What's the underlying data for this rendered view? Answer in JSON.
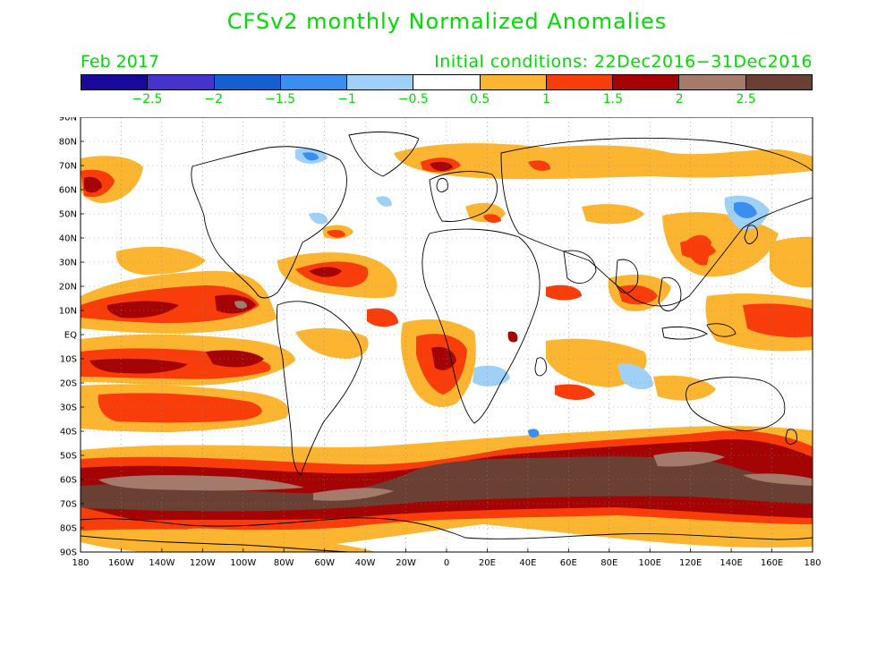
{
  "title": "CFSv2 monthly Normalized Anomalies",
  "month_label": "Feb 2017",
  "init_label": "Initial conditions: 22Dec2016−31Dec2016",
  "colorbar": {
    "colors": [
      "#1a0a9c",
      "#4433cc",
      "#1560d0",
      "#3a8ef0",
      "#9fd0f8",
      "#ffffff",
      "#fbb530",
      "#f83c0a",
      "#a40404",
      "#a47a6a",
      "#6a4034"
    ],
    "labels": [
      "−2.5",
      "−2",
      "−1.5",
      "−1",
      "−0.5",
      "0.5",
      "1",
      "1.5",
      "2",
      "2.5"
    ]
  },
  "map": {
    "lat_labels": [
      "90N",
      "80N",
      "70N",
      "60N",
      "50N",
      "40N",
      "30N",
      "20N",
      "10N",
      "EQ",
      "10S",
      "20S",
      "30S",
      "40S",
      "50S",
      "60S",
      "70S",
      "80S",
      "90S"
    ],
    "lon_labels": [
      "180",
      "160W",
      "140W",
      "120W",
      "100W",
      "80W",
      "60W",
      "40W",
      "20W",
      "0",
      "20E",
      "40E",
      "60E",
      "80E",
      "100E",
      "120E",
      "140E",
      "160E",
      "180"
    ],
    "lon_range": [
      -180,
      180
    ],
    "lat_range": [
      -90,
      90
    ],
    "grid": "dotted"
  }
}
